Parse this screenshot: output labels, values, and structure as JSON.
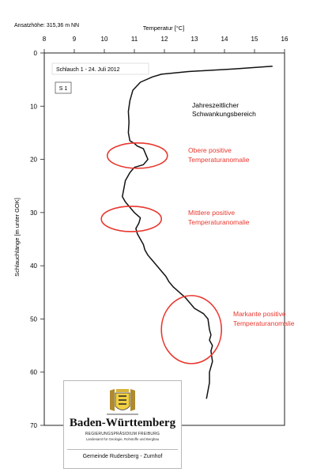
{
  "header": {
    "altitude_label": "Ansatzhöhe: 315,36 m NN"
  },
  "chart_data": {
    "type": "line",
    "title": "",
    "xlabel": "Temperatur [°C]",
    "ylabel": "Schlauchlänge [m unter GOK]",
    "xlim": [
      8,
      16
    ],
    "ylim": [
      0,
      70
    ],
    "y_inverted": true,
    "x_axis_position": "top",
    "x_ticks": [
      "8",
      "9",
      "10",
      "11",
      "12",
      "13",
      "14",
      "15",
      "16"
    ],
    "y_ticks": [
      "0",
      "10",
      "20",
      "30",
      "40",
      "50",
      "60",
      "70"
    ],
    "grid": false,
    "series": [
      {
        "color": "#111111",
        "x": [
          15.6,
          14.3,
          12.8,
          11.9,
          11.6,
          11.2,
          10.95,
          10.85,
          10.8,
          10.82,
          10.8,
          10.85,
          11.0,
          11.1,
          11.3,
          11.45,
          11.3,
          11.0,
          10.85,
          10.7,
          10.65,
          10.6,
          10.7,
          10.85,
          11.0,
          11.1,
          11.2,
          11.15,
          11.05,
          11.1,
          11.2,
          11.3,
          11.35,
          11.45,
          11.6,
          11.75,
          11.9,
          12.05,
          12.15,
          12.3,
          12.5,
          12.7,
          13.0,
          13.3,
          13.45,
          13.5,
          13.55,
          13.5,
          13.6,
          13.55,
          13.6,
          13.5,
          13.5,
          13.45,
          13.4
        ],
        "y": [
          2.5,
          3.0,
          3.5,
          4.0,
          4.5,
          5.5,
          7.0,
          9.0,
          11.0,
          13.0,
          15.0,
          16.5,
          17.0,
          17.5,
          18.0,
          20.0,
          21.0,
          21.5,
          22.5,
          24.0,
          25.5,
          27.0,
          28.0,
          29.0,
          30.0,
          30.5,
          31.0,
          32.0,
          33.0,
          34.0,
          35.0,
          36.0,
          37.0,
          38.0,
          39.0,
          40.0,
          41.0,
          42.0,
          43.0,
          44.0,
          45.0,
          46.0,
          48.0,
          49.0,
          50.0,
          52.0,
          53.0,
          54.0,
          55.0,
          56.0,
          58.0,
          60.0,
          62.0,
          63.5,
          65.0
        ]
      }
    ],
    "annotations": {
      "profile": "Schlauch 1 - 24. Juli 2012",
      "sensor": "S 1",
      "seasonal": [
        "Jahreszeitlicher",
        "Schwankungsbereich"
      ],
      "anomalies": [
        {
          "lines": [
            "Obere positive",
            "Temperaturanomalie"
          ],
          "color": "#e8382f",
          "center": [
            11.1,
            19.3
          ]
        },
        {
          "lines": [
            "Mittlere positive",
            "Temperaturanomalie"
          ],
          "color": "#e8382f",
          "center": [
            10.9,
            31.2
          ]
        },
        {
          "lines": [
            "Markante positive",
            "Temperaturanomalie"
          ],
          "color": "#e8382f",
          "center": [
            12.9,
            52.0
          ]
        }
      ]
    }
  },
  "logo": {
    "name": "Baden-Württemberg",
    "authority": "REGIERUNGSPRÄSIDIUM FREIBURG",
    "department": "Landesamt für Geologie, Rohstoffe und Bergbau",
    "municipality": "Gemeinde Rudersberg - Zumhof"
  }
}
